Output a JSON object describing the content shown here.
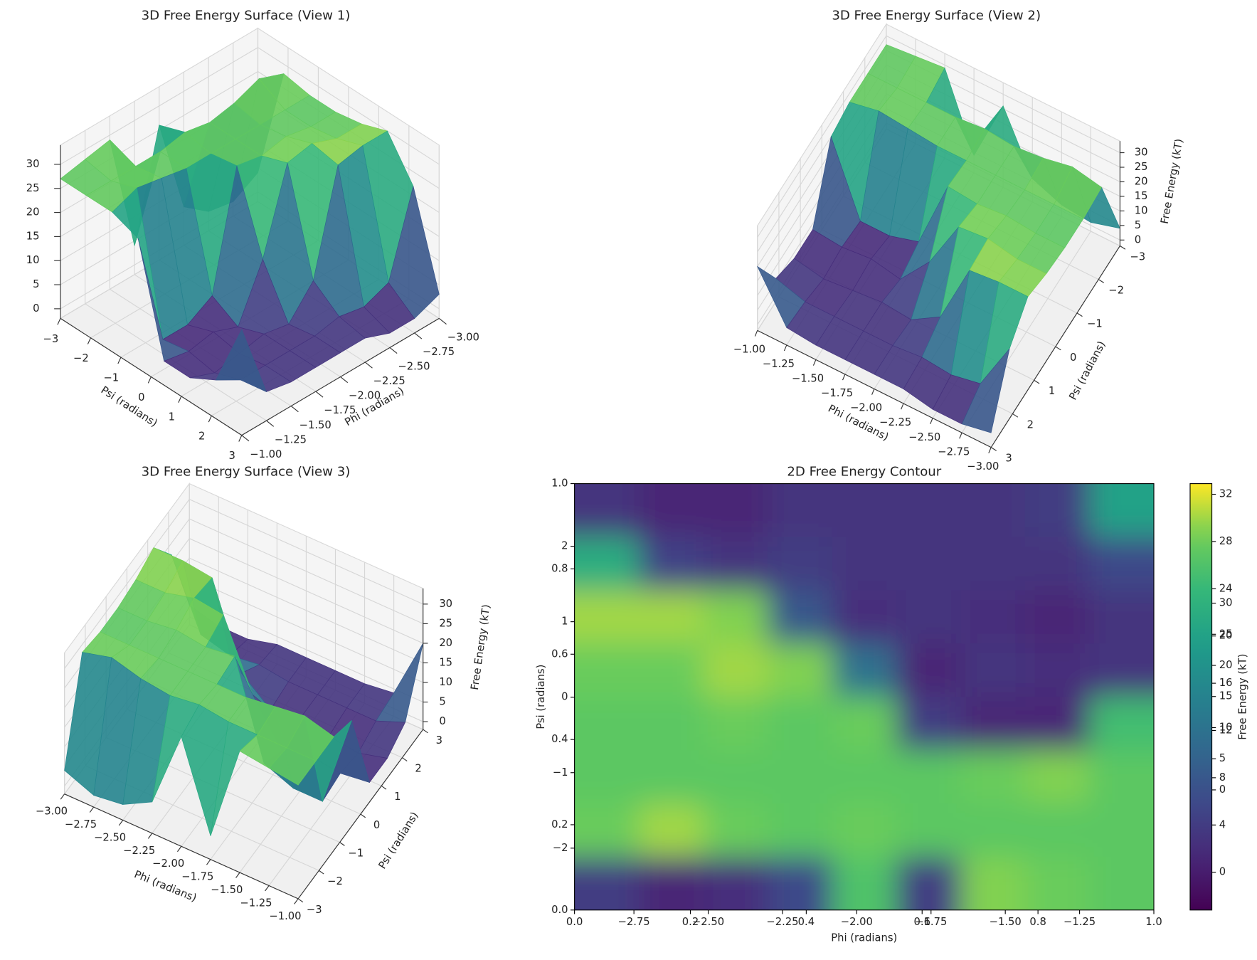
{
  "chart_data": [
    {
      "type": "surface3d",
      "title": "3D Free Energy Surface (View 1)",
      "xlabel": "Phi (radians)",
      "ylabel": "Psi (radians)",
      "xlim": [
        -3,
        -1
      ],
      "ylim": [
        -3,
        3
      ],
      "zlim": [
        -2,
        34
      ],
      "xticks": [
        {
          "value": -3,
          "label": "−3.00"
        },
        {
          "value": -2.75,
          "label": "−2.75"
        },
        {
          "value": -2.5,
          "label": "−2.50"
        },
        {
          "value": -2.25,
          "label": "−2.25"
        },
        {
          "value": -2,
          "label": "−2.00"
        },
        {
          "value": -1.75,
          "label": "−1.75"
        },
        {
          "value": -1.5,
          "label": "−1.50"
        },
        {
          "value": -1.25,
          "label": "−1.25"
        },
        {
          "value": -1,
          "label": "−1.00"
        }
      ],
      "yticks": [
        {
          "value": -3,
          "label": "−3"
        },
        {
          "value": -2,
          "label": "−2"
        },
        {
          "value": -1,
          "label": "−1"
        },
        0,
        1,
        2,
        3
      ],
      "zticks": [
        0,
        5,
        10,
        15,
        20,
        25,
        30
      ],
      "colormap": "viridis"
    },
    {
      "type": "surface3d",
      "title": "3D Free Energy Surface (View 2)",
      "xlabel": "Phi (radians)",
      "ylabel": "Psi (radians)",
      "zlabel": "Free Energy (kT)",
      "xlim": [
        -3,
        -1
      ],
      "ylim": [
        -3,
        3
      ],
      "zlim": [
        -2,
        34
      ],
      "xticks": [
        {
          "value": -3,
          "label": "−3.00"
        },
        {
          "value": -2.75,
          "label": "−2.75"
        },
        {
          "value": -2.5,
          "label": "−2.50"
        },
        {
          "value": -2.25,
          "label": "−2.25"
        },
        {
          "value": -2,
          "label": "−2.00"
        },
        {
          "value": -1.75,
          "label": "−1.75"
        },
        {
          "value": -1.5,
          "label": "−1.50"
        },
        {
          "value": -1.25,
          "label": "−1.25"
        },
        {
          "value": -1,
          "label": "−1.00"
        }
      ],
      "yticks": [
        {
          "value": -3,
          "label": "−3"
        },
        {
          "value": -2,
          "label": "−2"
        },
        {
          "value": -1,
          "label": "−1"
        },
        0,
        1,
        2,
        3
      ],
      "zticks": [
        0,
        5,
        10,
        15,
        20,
        25,
        30
      ],
      "colormap": "viridis"
    },
    {
      "type": "surface3d",
      "title": "3D Free Energy Surface (View 3)",
      "xlabel": "Phi (radians)",
      "ylabel": "Psi (radians)",
      "zlabel": "Free Energy (kT)",
      "xlim": [
        -3,
        -1
      ],
      "ylim": [
        -3,
        3
      ],
      "zlim": [
        -2,
        34
      ],
      "xticks": [
        {
          "value": -3,
          "label": "−3.00"
        },
        {
          "value": -2.75,
          "label": "−2.75"
        },
        {
          "value": -2.5,
          "label": "−2.50"
        },
        {
          "value": -2.25,
          "label": "−2.25"
        },
        {
          "value": -2,
          "label": "−2.00"
        },
        {
          "value": -1.75,
          "label": "−1.75"
        },
        {
          "value": -1.5,
          "label": "−1.50"
        },
        {
          "value": -1.25,
          "label": "−1.25"
        },
        {
          "value": -1,
          "label": "−1.00"
        }
      ],
      "yticks": [
        {
          "value": -3,
          "label": "−3"
        },
        {
          "value": -2,
          "label": "−2"
        },
        {
          "value": -1,
          "label": "−1"
        },
        0,
        1,
        2,
        3
      ],
      "zticks": [
        0,
        5,
        10,
        15,
        20,
        25,
        30
      ],
      "colormap": "viridis"
    },
    {
      "type": "contour",
      "title": "2D Free Energy Contour",
      "xlabel": "Phi (radians)",
      "ylabel": "Psi (radians)",
      "colorbar_label": "Free Energy (kT)",
      "colormap": "viridis",
      "xlim": [
        0,
        1
      ],
      "xticks": [
        {
          "value": 0,
          "label": "0.0"
        },
        {
          "value": 0.2,
          "label": "0.2"
        },
        {
          "value": 0.4,
          "label": "0.4"
        },
        {
          "value": 0.6,
          "label": "0.6"
        },
        {
          "value": 0.8,
          "label": "0.8"
        },
        {
          "value": 1,
          "label": "1.0"
        }
      ],
      "x2lim": [
        -2.95,
        -1.0
      ],
      "x2ticks": [
        {
          "value": -2.75,
          "label": "−2.75"
        },
        {
          "value": -2.5,
          "label": "−2.50"
        },
        {
          "value": -2.25,
          "label": "−2.25"
        },
        {
          "value": -2,
          "label": "−2.00"
        },
        {
          "value": -1.75,
          "label": "−1.75"
        },
        {
          "value": -1.5,
          "label": "−1.50"
        },
        {
          "value": -1.25,
          "label": "−1.25"
        }
      ],
      "ylim": [
        0,
        1
      ],
      "yticks": [
        {
          "value": 0,
          "label": "0.0"
        },
        {
          "value": 0.2,
          "label": "0.2"
        },
        {
          "value": 0.4,
          "label": "0.4"
        },
        {
          "value": 0.6,
          "label": "0.6"
        },
        {
          "value": 0.8,
          "label": "0.8"
        },
        {
          "value": 1,
          "label": "1.0"
        }
      ],
      "y2lim": [
        -2.82,
        2.83
      ],
      "y2ticks": [
        {
          "value": -2,
          "label": "−2"
        },
        {
          "value": -1,
          "label": "−1"
        },
        0,
        1,
        2
      ],
      "clim": [
        -3.2,
        32.9
      ],
      "cticks": [
        0,
        4,
        8,
        12,
        16,
        20,
        24,
        28,
        32
      ],
      "c2lim": [
        -19.3,
        49.2
      ],
      "c2ticks": [
        0,
        5,
        10,
        15,
        20,
        25,
        30
      ],
      "z": [
        [
          3,
          1,
          1,
          3,
          3,
          3,
          3,
          4,
          20
        ],
        [
          22,
          5,
          3,
          4,
          3,
          3,
          3,
          3,
          6
        ],
        [
          30,
          30,
          29,
          8,
          2,
          3,
          2,
          1,
          3
        ],
        [
          28,
          28,
          30,
          29,
          12,
          1,
          3,
          2,
          3
        ],
        [
          27,
          27,
          28,
          27,
          28,
          4,
          1,
          1,
          25
        ],
        [
          27,
          27,
          27,
          27,
          27,
          27,
          28,
          29,
          27
        ],
        [
          28,
          30,
          28,
          27,
          28,
          27,
          27,
          27,
          27
        ],
        [
          4,
          1,
          2,
          6,
          26,
          4,
          29,
          28,
          27
        ]
      ]
    }
  ]
}
